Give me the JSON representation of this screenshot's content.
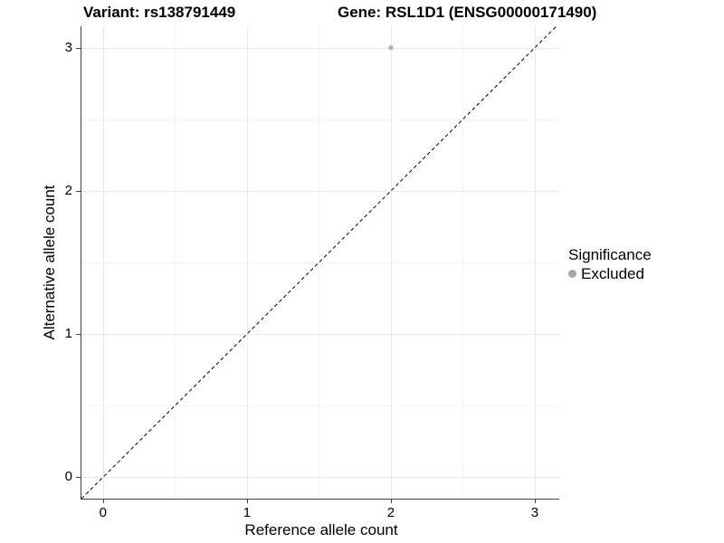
{
  "chart_data": {
    "type": "scatter",
    "titles": {
      "left": "Variant: rs138791449",
      "right": "Gene: RSL1D1 (ENSG00000171490)"
    },
    "xlabel": "Reference allele count",
    "ylabel": "Alternative allele count",
    "x_ticks": [
      0,
      1,
      2,
      3
    ],
    "y_ticks": [
      0,
      1,
      2,
      3
    ],
    "xlim": [
      -0.15,
      3.17
    ],
    "ylim": [
      -0.15,
      3.15
    ],
    "grid": {
      "major": true,
      "minor": true
    },
    "points": [
      {
        "x": 2,
        "y": 3,
        "significance": "Excluded",
        "color": "#b0b0b0"
      }
    ],
    "reference_line": {
      "kind": "identity y=x",
      "style": "dashed",
      "x0": -0.15,
      "y0": -0.15,
      "x1": 3.15,
      "y1": 3.15
    },
    "legend": {
      "title": "Significance",
      "position": "right",
      "entries": [
        {
          "label": "Excluded",
          "marker": "circle",
          "color": "#a8a8a8"
        }
      ]
    }
  },
  "colors": {
    "background": "#ffffff",
    "text": "#000000",
    "axis_line": "#404040",
    "grid_major": "#e8e8e8",
    "grid_minor": "#f4f4f4",
    "point": "#b0b0b0",
    "reference_line": "#000000"
  }
}
